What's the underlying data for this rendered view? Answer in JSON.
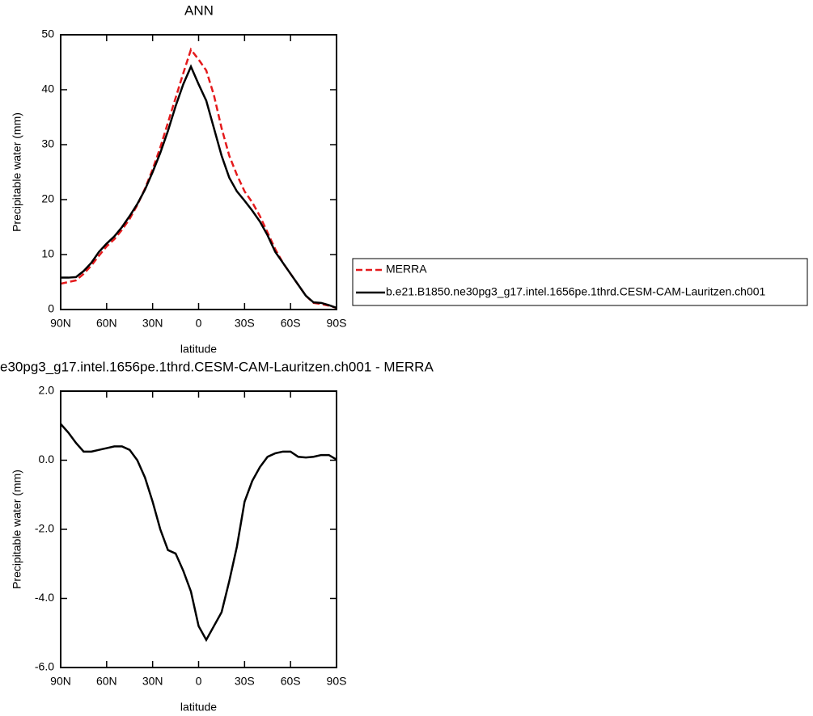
{
  "chart_data": [
    {
      "type": "line",
      "title": "ANN",
      "x_label": "latitude",
      "y_label": "Precipitable water (mm)",
      "x": [
        90,
        85,
        80,
        75,
        70,
        65,
        60,
        55,
        50,
        45,
        40,
        35,
        30,
        25,
        20,
        15,
        10,
        5,
        0,
        -5,
        -10,
        -15,
        -20,
        -25,
        -30,
        -35,
        -40,
        -45,
        -50,
        -55,
        -60,
        -65,
        -70,
        -75,
        -80,
        -85,
        -90
      ],
      "series": [
        {
          "name": "MERRA",
          "color": "#e41a1c",
          "style": "dashed",
          "values": [
            4.7,
            5.0,
            5.3,
            6.5,
            8.0,
            9.8,
            11.5,
            12.8,
            14.5,
            16.5,
            19.0,
            22.0,
            25.5,
            29.5,
            34.0,
            38.5,
            43.0,
            47.3,
            45.5,
            43.5,
            39.0,
            33.0,
            28.0,
            24.5,
            21.5,
            19.5,
            17.0,
            14.0,
            11.0,
            8.5,
            6.5,
            4.5,
            2.5,
            1.2,
            1.0,
            0.7,
            0.3
          ]
        },
        {
          "name": "b.e21.B1850.ne30pg3_g17.intel.1656pe.1thrd.CESM-CAM-Lauritzen.ch001",
          "color": "#000000",
          "style": "solid",
          "values": [
            5.8,
            5.8,
            5.9,
            7.0,
            8.5,
            10.5,
            12.0,
            13.3,
            15.0,
            17.0,
            19.2,
            21.8,
            25.0,
            28.5,
            32.5,
            37.0,
            41.0,
            44.2,
            41.0,
            38.0,
            33.0,
            28.0,
            24.0,
            21.5,
            19.8,
            18.0,
            16.0,
            13.5,
            10.5,
            8.5,
            6.5,
            4.5,
            2.5,
            1.3,
            1.2,
            0.8,
            0.3
          ]
        }
      ],
      "xlim": [
        90,
        -90
      ],
      "xticks": [
        {
          "value": 90,
          "label": "90N"
        },
        {
          "value": 60,
          "label": "60N"
        },
        {
          "value": 30,
          "label": "30N"
        },
        0,
        {
          "value": -30,
          "label": "30S"
        },
        {
          "value": -60,
          "label": "60S"
        },
        {
          "value": -90,
          "label": "90S"
        }
      ],
      "ylim": [
        0,
        50
      ],
      "yticks": [
        0,
        10,
        20,
        30,
        40,
        50
      ],
      "legend": "right"
    },
    {
      "type": "line",
      "title": "e30pg3_g17.intel.1656pe.1thrd.CESM-CAM-Lauritzen.ch001 - MERRA",
      "x_label": "latitude",
      "y_label": "Precipitable water (mm)",
      "x": [
        90,
        85,
        80,
        75,
        70,
        65,
        60,
        55,
        50,
        45,
        40,
        35,
        30,
        25,
        20,
        15,
        10,
        5,
        0,
        -5,
        -10,
        -15,
        -20,
        -25,
        -30,
        -35,
        -40,
        -45,
        -50,
        -55,
        -60,
        -65,
        -70,
        -75,
        -80,
        -85,
        -90
      ],
      "series": [
        {
          "color": "#000000",
          "style": "solid",
          "values": [
            1.05,
            0.8,
            0.5,
            0.25,
            0.25,
            0.3,
            0.35,
            0.4,
            0.4,
            0.3,
            0.0,
            -0.5,
            -1.2,
            -2.0,
            -2.6,
            -2.7,
            -3.2,
            -3.8,
            -4.8,
            -5.2,
            -4.8,
            -4.4,
            -3.5,
            -2.5,
            -1.2,
            -0.6,
            -0.2,
            0.1,
            0.2,
            0.25,
            0.25,
            0.1,
            0.08,
            0.1,
            0.15,
            0.15,
            0.02
          ]
        }
      ],
      "xlim": [
        90,
        -90
      ],
      "xticks": [
        {
          "value": 90,
          "label": "90N"
        },
        {
          "value": 60,
          "label": "60N"
        },
        {
          "value": 30,
          "label": "30N"
        },
        0,
        {
          "value": -30,
          "label": "30S"
        },
        {
          "value": -60,
          "label": "60S"
        },
        {
          "value": -90,
          "label": "90S"
        }
      ],
      "ylim": [
        -6,
        2
      ],
      "yticks": [
        {
          "value": -6,
          "label": "-6.0"
        },
        {
          "value": -4,
          "label": "-4.0"
        },
        {
          "value": -2,
          "label": "-2.0"
        },
        {
          "value": 0,
          "label": "0.0"
        },
        {
          "value": 2,
          "label": "2.0"
        }
      ]
    }
  ]
}
